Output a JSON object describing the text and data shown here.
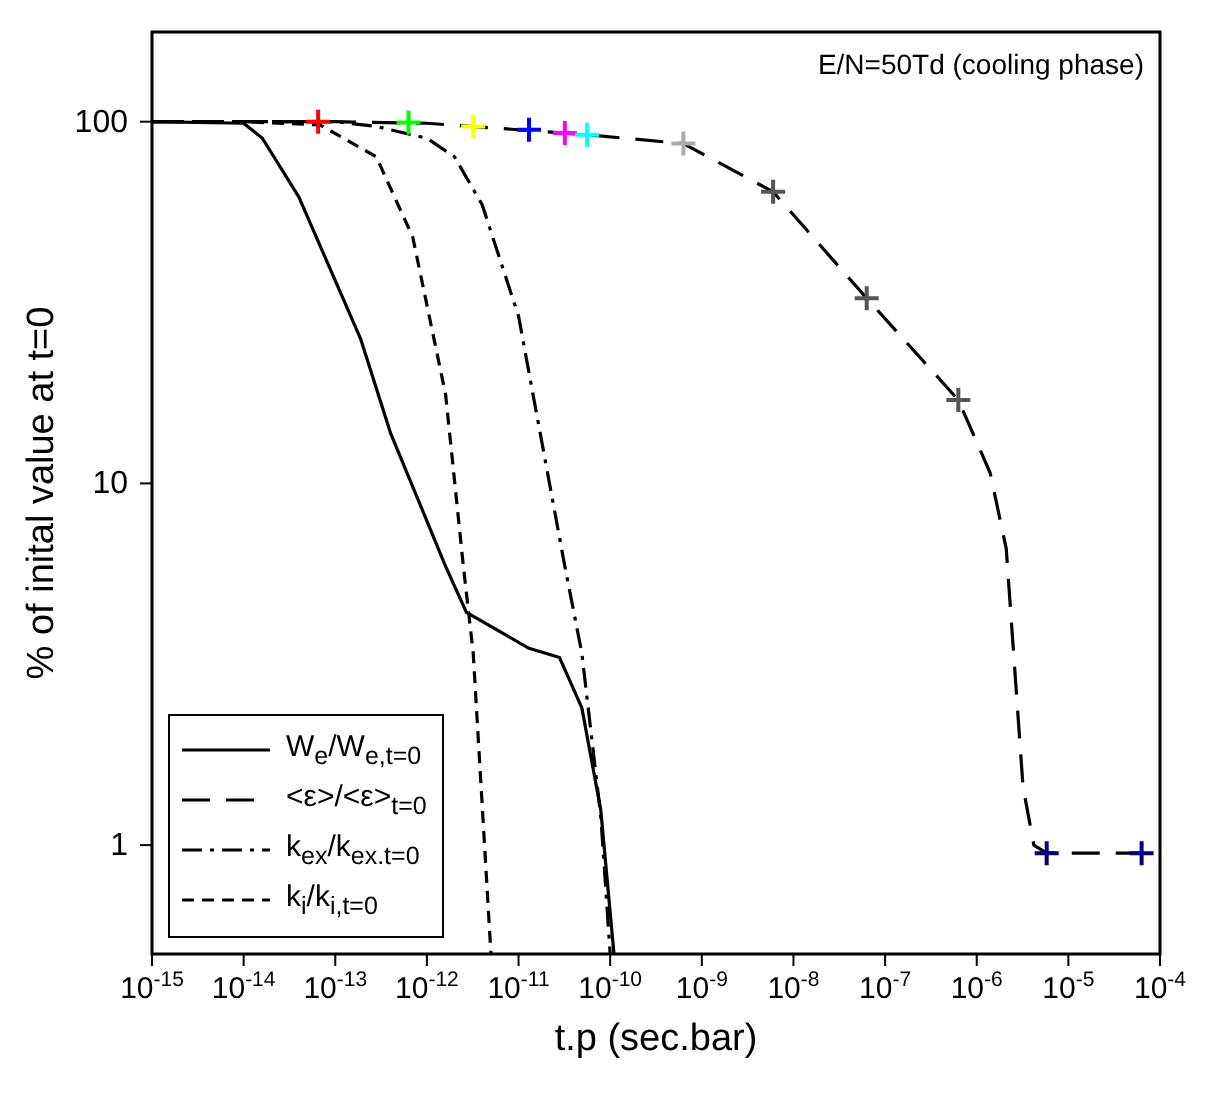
{
  "chart_data": {
    "type": "line",
    "xlabel": "t.p (sec.bar)",
    "ylabel": "% of inital value at t=0",
    "annotations": [
      "E/N=50Td (cooling phase)"
    ],
    "log": "xy",
    "grid": false,
    "legend": "bottom left",
    "marker": "none",
    "xlim": [
      1e-15,
      0.0001
    ],
    "ylim": [
      0.5,
      177
    ],
    "xticks": [
      {
        "value": 1e-15,
        "label": "10$^{-15}$"
      },
      {
        "value": 1e-14,
        "label": "10$^{-14}$"
      },
      {
        "value": 1e-13,
        "label": "10$^{-13}$"
      },
      {
        "value": 1e-12,
        "label": "10$^{-12}$"
      },
      {
        "value": 1e-11,
        "label": "10$^{-11}$"
      },
      {
        "value": 1e-10,
        "label": "10$^{-10}$"
      },
      {
        "value": 1e-09,
        "label": "10$^{-9}$"
      },
      {
        "value": 1e-08,
        "label": "10$^{-8}$"
      },
      {
        "value": 1e-07,
        "label": "10$^{-7}$"
      },
      {
        "value": 1e-06,
        "label": "10$^{-6}$"
      },
      {
        "value": 1e-05,
        "label": "10$^{-5}$"
      },
      {
        "value": 0.0001,
        "label": "10$^{-4}$"
      }
    ],
    "yticks": [
      1,
      10,
      100
    ],
    "series": [
      {
        "name": "W$_{e}$/W$_{e,t=0}$",
        "color": "#000000",
        "line_style": "solid",
        "x": [
          1e-15,
          1e-14,
          1.6e-14,
          4e-14,
          1.9e-13,
          4e-13,
          1.6e-12,
          2.7e-12,
          1.3e-11,
          2.8e-11,
          4.9e-11,
          7.9e-11,
          1.1e-10
        ],
        "values": [
          100,
          99,
          90,
          62,
          25,
          13.8,
          5.9,
          4.4,
          3.5,
          3.3,
          2.4,
          1.25,
          0.5
        ]
      },
      {
        "name": "<ε>/<ε>$_{t=0}$",
        "color": "#000000",
        "line_style": "longdash",
        "x": [
          1e-15,
          1e-13,
          1e-12,
          1e-11,
          5.6e-11,
          6.3e-10,
          6e-09,
          6.3e-08,
          6.3e-07,
          1.4e-06,
          2.1e-06,
          3.2e-06,
          4.2e-06,
          5.8e-06,
          0.0001
        ],
        "values": [
          100,
          100,
          99,
          95,
          92,
          87,
          64,
          32.5,
          17,
          10.7,
          6.6,
          1.45,
          1,
          0.95,
          0.95
        ]
      },
      {
        "name": "k$_{ex}$/k$_{ex.t=0}$",
        "color": "#000000",
        "line_style": "dashdot",
        "x": [
          1e-15,
          1e-13,
          2.8e-13,
          1e-12,
          2e-12,
          4e-12,
          1e-11,
          3.2e-11,
          4.9e-11,
          7.9e-11,
          1e-10
        ],
        "values": [
          100,
          100,
          97,
          90,
          80,
          59,
          29,
          5.9,
          3.4,
          1.2,
          0.5
        ]
      },
      {
        "name": "k$_{i}$/k$_{i,t=0}$",
        "color": "#000000",
        "line_style": "dashed",
        "x": [
          1e-15,
          1e-14,
          6.8e-14,
          2.8e-13,
          7e-13,
          1.6e-12,
          2.5e-12,
          3.2e-12,
          5e-12
        ],
        "values": [
          100,
          100,
          98,
          80,
          48,
          17.6,
          5.9,
          3.4,
          0.5
        ]
      },
      {
        "type": "scatter",
        "marker": "cross",
        "x": [
          6.5e-14,
          6.3e-13,
          3.2e-12,
          1.3e-11,
          3.2e-11,
          5.6e-11,
          6.3e-10,
          6e-09,
          6.3e-08,
          6.3e-07,
          5.8e-06,
          6.3e-05
        ],
        "values": [
          100,
          99.5,
          97,
          95,
          93,
          92,
          87,
          64,
          32.5,
          17,
          0.95,
          0.95
        ],
        "colors": [
          "#ff0000",
          "#00ff00",
          "#ffff00",
          "#0000ff",
          "#ff00ff",
          "#00ffff",
          "#aaaaaa",
          "#555555",
          "#555555",
          "#555555",
          "#000080",
          "#000080"
        ]
      }
    ]
  }
}
